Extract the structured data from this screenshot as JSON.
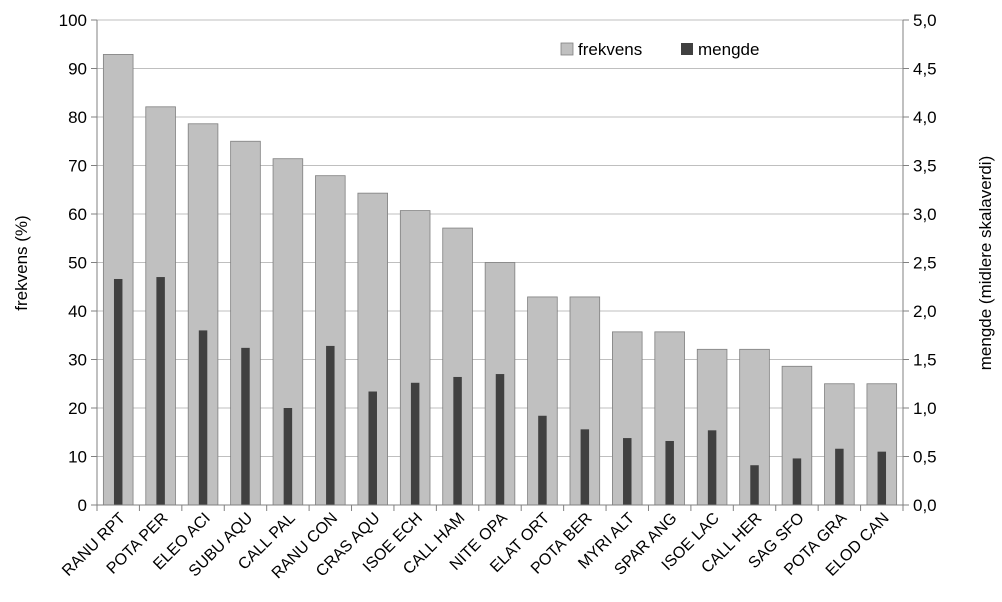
{
  "chart_data": {
    "type": "bar",
    "categories": [
      "RANU RPT",
      "POTA PER",
      "ELEO ACI",
      "SUBU AQU",
      "CALL PAL",
      "RANU CON",
      "CRAS AQU",
      "ISOE ECH",
      "CALL HAM",
      "NITE OPA",
      "ELAT ORT",
      "POTA BER",
      "MYRI ALT",
      "SPAR ANG",
      "ISOE LAC",
      "CALL HER",
      "SAG SFO",
      "POTA GRA",
      "ELOD CAN"
    ],
    "series": [
      {
        "name": "frekvens",
        "axis": "left",
        "color": "#c0c0c0",
        "values": [
          92.9,
          82.1,
          78.6,
          75.0,
          71.4,
          67.9,
          64.3,
          60.7,
          57.1,
          50.0,
          42.9,
          42.9,
          35.7,
          35.7,
          32.1,
          32.1,
          28.6,
          25.0,
          25.0
        ]
      },
      {
        "name": "mengde",
        "axis": "right",
        "color": "#404040",
        "values": [
          2.33,
          2.35,
          1.8,
          1.62,
          1.0,
          1.64,
          1.17,
          1.26,
          1.32,
          1.35,
          0.92,
          0.78,
          0.69,
          0.66,
          0.77,
          0.41,
          0.48,
          0.58,
          0.55
        ]
      }
    ],
    "ylabel": "frekvens (%)",
    "y2label": "mengde (midlere skalaverdi)",
    "ylim": [
      0,
      100
    ],
    "y2lim": [
      0,
      5
    ],
    "yticks": [
      "0",
      "10",
      "20",
      "30",
      "40",
      "50",
      "60",
      "70",
      "80",
      "90",
      "100"
    ],
    "y2ticks": [
      "0,0",
      "0,5",
      "1,0",
      "1,5",
      "2,0",
      "2,5",
      "3,0",
      "3,5",
      "4,0",
      "4,5",
      "5,0"
    ],
    "grid": true,
    "legend_position": "top-right"
  }
}
